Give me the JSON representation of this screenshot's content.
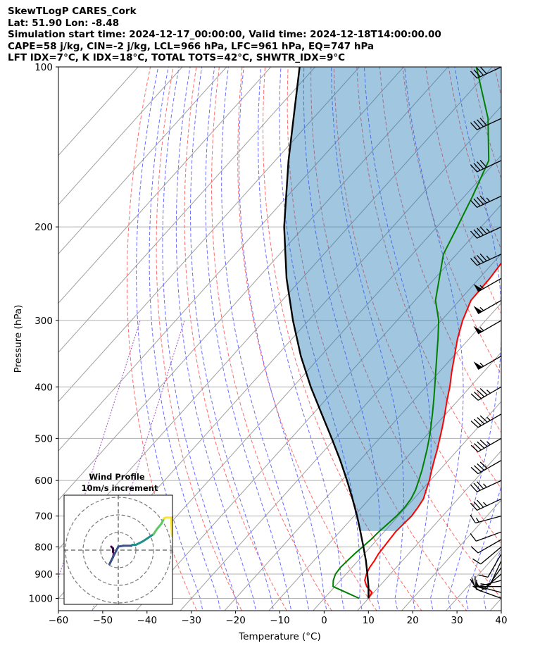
{
  "header": {
    "line1": "SkewTLogP CARES_Cork",
    "line2": "Lat: 51.90   Lon: -8.48",
    "line3": "Simulation start time: 2024-12-17_00:00:00, Valid time: 2024-12-18T14:00:00.00",
    "line4": "CAPE=58 j/kg, CIN=-2 j/kg, LCL=966 hPa, LFC=961 hPa, EQ=747 hPa",
    "line5": "LFT IDX=7°C, K IDX=18°C, TOTAL TOTS=42°C, SHWTR_IDX=9°C"
  },
  "chart_data": {
    "type": "line",
    "xlabel": "Temperature (°C)",
    "ylabel": "Pressure (hPa)",
    "xlim": [
      -60,
      40
    ],
    "ylim": [
      1050,
      100
    ],
    "x_ticks": [
      -60,
      -50,
      -40,
      -30,
      -20,
      -10,
      0,
      10,
      20,
      30,
      40
    ],
    "x_tick_labels": [
      "−60",
      "−50",
      "−40",
      "−30",
      "−20",
      "−10",
      "0",
      "10",
      "20",
      "30",
      "40"
    ],
    "y_ticks": [
      1000,
      900,
      800,
      700,
      600,
      500,
      400,
      300,
      200,
      100
    ],
    "y_tick_labels": [
      "1000",
      "900",
      "800",
      "700",
      "600",
      "500",
      "400",
      "300",
      "200",
      "100"
    ],
    "y_scale": "log",
    "grid": true,
    "series": [
      {
        "color": "#ff0000",
        "pressure": [
          1000,
          975,
          950,
          925,
          900,
          875,
          850,
          825,
          800,
          775,
          750,
          725,
          700,
          675,
          650,
          625,
          600,
          575,
          550,
          525,
          500,
          475,
          450,
          425,
          400,
          375,
          350,
          325,
          300,
          275,
          250,
          225,
          200,
          175,
          150,
          125,
          100
        ],
        "values": [
          10.0,
          9.6,
          7.2,
          5.5,
          4.6,
          4.0,
          3.7,
          3.2,
          3.0,
          2.8,
          2.6,
          2.8,
          3.0,
          2.7,
          2.2,
          1.0,
          -0.2,
          -1.7,
          -3.2,
          -4.7,
          -6.4,
          -8.2,
          -10.2,
          -12.4,
          -14.6,
          -17.2,
          -19.8,
          -22.6,
          -25.2,
          -27.4,
          -27.6,
          -28.4,
          -29.6,
          -31.0,
          -33.0,
          -36.0,
          -41.0
        ]
      },
      {
        "color": "#008000",
        "pressure": [
          1000,
          975,
          950,
          925,
          900,
          875,
          850,
          825,
          800,
          775,
          750,
          725,
          700,
          675,
          650,
          625,
          600,
          575,
          550,
          525,
          500,
          475,
          450,
          425,
          400,
          375,
          350,
          325,
          300,
          275,
          250,
          225,
          200,
          175,
          150,
          125,
          100
        ],
        "values": [
          7.9,
          3.8,
          -0.4,
          -1.6,
          -2.4,
          -2.6,
          -2.4,
          -2.2,
          -1.8,
          -1.4,
          -1.2,
          -0.8,
          -0.4,
          -0.3,
          -0.6,
          -1.4,
          -2.6,
          -3.9,
          -5.4,
          -7.0,
          -8.8,
          -10.8,
          -13.0,
          -15.4,
          -18.0,
          -20.8,
          -23.8,
          -27.0,
          -30.6,
          -35.4,
          -39.0,
          -43.0,
          -45.4,
          -48.2,
          -51.8,
          -60.5,
          -73.6
        ]
      },
      {
        "color": "#000000",
        "pressure": [
          1000,
          950,
          900,
          850,
          800,
          750,
          700,
          650,
          600,
          550,
          500,
          450,
          400,
          350,
          300,
          250,
          200,
          150,
          100
        ],
        "values": [
          10.0,
          7.6,
          4.8,
          1.8,
          -1.6,
          -5.3,
          -9.3,
          -13.8,
          -18.8,
          -24.4,
          -30.8,
          -38.0,
          -46.0,
          -54.5,
          -63.5,
          -73.5,
          -84.5,
          -97.0,
          -113.5
        ]
      }
    ],
    "shading": [
      {
        "color": "#1f77b4",
        "between": "temperature and parcel",
        "range_hPa": [
          747,
          100
        ]
      },
      {
        "color": "#ff0000",
        "between": "temperature and parcel",
        "range_hPa": [
          1000,
          960
        ]
      }
    ],
    "wind_barbs": {
      "color": "#000000",
      "pressure": [
        1000,
        975,
        950,
        925,
        900,
        875,
        850,
        825,
        800,
        775,
        750,
        700,
        650,
        600,
        550,
        500,
        450,
        400,
        350,
        300,
        275,
        250,
        225,
        200,
        175,
        150,
        125,
        100
      ],
      "speed_kt": [
        12,
        14,
        15,
        15,
        12,
        10,
        10,
        10,
        10,
        12,
        10,
        15,
        35,
        35,
        40,
        45,
        45,
        45,
        55,
        55,
        55,
        55,
        45,
        45,
        45,
        40,
        40,
        40
      ],
      "direction_deg": [
        290,
        285,
        270,
        255,
        230,
        215,
        205,
        210,
        230,
        240,
        250,
        255,
        245,
        245,
        240,
        240,
        240,
        240,
        240,
        240,
        240,
        240,
        245,
        245,
        245,
        245,
        245,
        245
      ]
    },
    "hodograph": {
      "title": "Wind Profile",
      "subtitle": "10m/s increment",
      "rings_ms": [
        10,
        20,
        30
      ],
      "colormap": [
        "#440154",
        "#3b528b",
        "#21918c",
        "#5ec962",
        "#fde725"
      ],
      "u": [
        -4,
        -3,
        -3,
        -2.5,
        -3,
        -4,
        -4.5,
        -5,
        0,
        3,
        7.5,
        8,
        10,
        12,
        14,
        17,
        20,
        22,
        24.5,
        25,
        25.5,
        26,
        27,
        28.5,
        30,
        30.5,
        30.5
      ],
      "v": [
        2,
        1,
        -1,
        -2,
        -4,
        -6,
        -7,
        -8,
        2,
        2.5,
        2.5,
        3,
        3,
        4,
        5,
        7,
        9,
        12,
        15,
        16,
        17,
        18,
        18.5,
        18.5,
        18.5,
        8.5,
        8
      ]
    }
  }
}
